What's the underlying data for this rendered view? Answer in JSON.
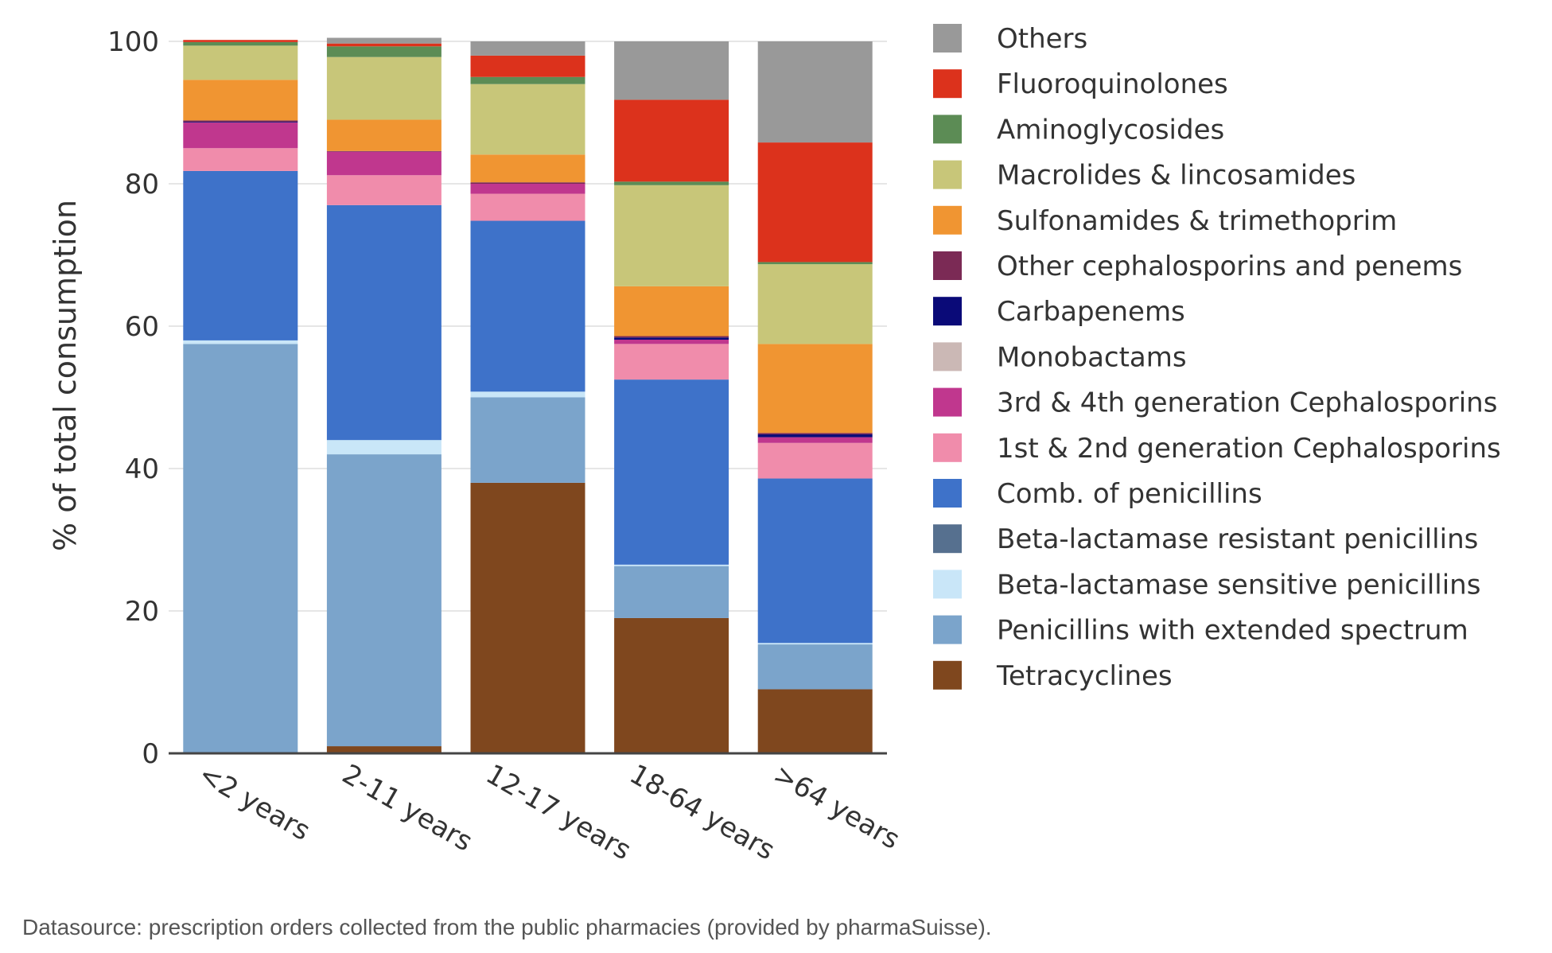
{
  "footnote": "Datasource: prescription orders collected from the public pharmacies (provided by pharmaSuisse).",
  "chart_data": {
    "type": "bar",
    "stacked": true,
    "ylabel": "% of total consumption",
    "xlabel": "",
    "ylim": [
      0,
      100
    ],
    "yticks": [
      0,
      20,
      40,
      60,
      80,
      100
    ],
    "grid": true,
    "legend_position": "right",
    "categories": [
      "<2 years",
      "2-11 years",
      "12-17 years",
      "18-64 years",
      ">64 years"
    ],
    "series": [
      {
        "name": "Tetracyclines",
        "color": "#7f471e",
        "values": [
          0,
          1,
          38,
          19,
          9
        ]
      },
      {
        "name": "Penicillins with extended spectrum",
        "color": "#7ba4cb",
        "values": [
          57.5,
          41,
          12,
          7.3,
          6.3
        ]
      },
      {
        "name": "Beta-lactamase sensitive penicillins",
        "color": "#c9e6f8",
        "values": [
          0.5,
          2,
          0.8,
          0.2,
          0.2
        ]
      },
      {
        "name": "Beta-lactamase resistant penicillins",
        "color": "#56708f",
        "values": [
          0,
          0,
          0,
          0,
          0
        ]
      },
      {
        "name": "Comb. of penicillins",
        "color": "#3e72c9",
        "values": [
          23.8,
          33,
          24,
          26,
          23.1
        ]
      },
      {
        "name": "1st & 2nd generation Cephalosporins",
        "color": "#f08cab",
        "values": [
          3.2,
          4.2,
          3.8,
          5,
          5
        ]
      },
      {
        "name": "3rd & 4th generation Cephalosporins",
        "color": "#c0378e",
        "values": [
          3.6,
          3.3,
          1.4,
          0.6,
          0.8
        ]
      },
      {
        "name": "Monobactams",
        "color": "#cbb8b5",
        "values": [
          0,
          0,
          0,
          0,
          0
        ]
      },
      {
        "name": "Carbapenems",
        "color": "#0a0a78",
        "values": [
          0.1,
          0,
          0,
          0.3,
          0.4
        ]
      },
      {
        "name": "Other cephalosporins and penems",
        "color": "#7b2a55",
        "values": [
          0.2,
          0.1,
          0.2,
          0.2,
          0.2
        ]
      },
      {
        "name": "Sulfonamides & trimethoprim",
        "color": "#f09532",
        "values": [
          5.7,
          4.4,
          3.9,
          7,
          12.5
        ]
      },
      {
        "name": "Macrolides & lincosamides",
        "color": "#c8c679",
        "values": [
          4.8,
          8.8,
          9.9,
          14.2,
          11.2
        ]
      },
      {
        "name": "Aminoglycosides",
        "color": "#5c8c55",
        "values": [
          0.5,
          1.5,
          1,
          0.5,
          0.3
        ]
      },
      {
        "name": "Fluoroquinolones",
        "color": "#dc321c",
        "values": [
          0.3,
          0.4,
          3,
          11.5,
          16.8
        ]
      },
      {
        "name": "Others",
        "color": "#999999",
        "values": [
          0,
          0.8,
          2,
          8.2,
          14.2
        ]
      }
    ]
  }
}
